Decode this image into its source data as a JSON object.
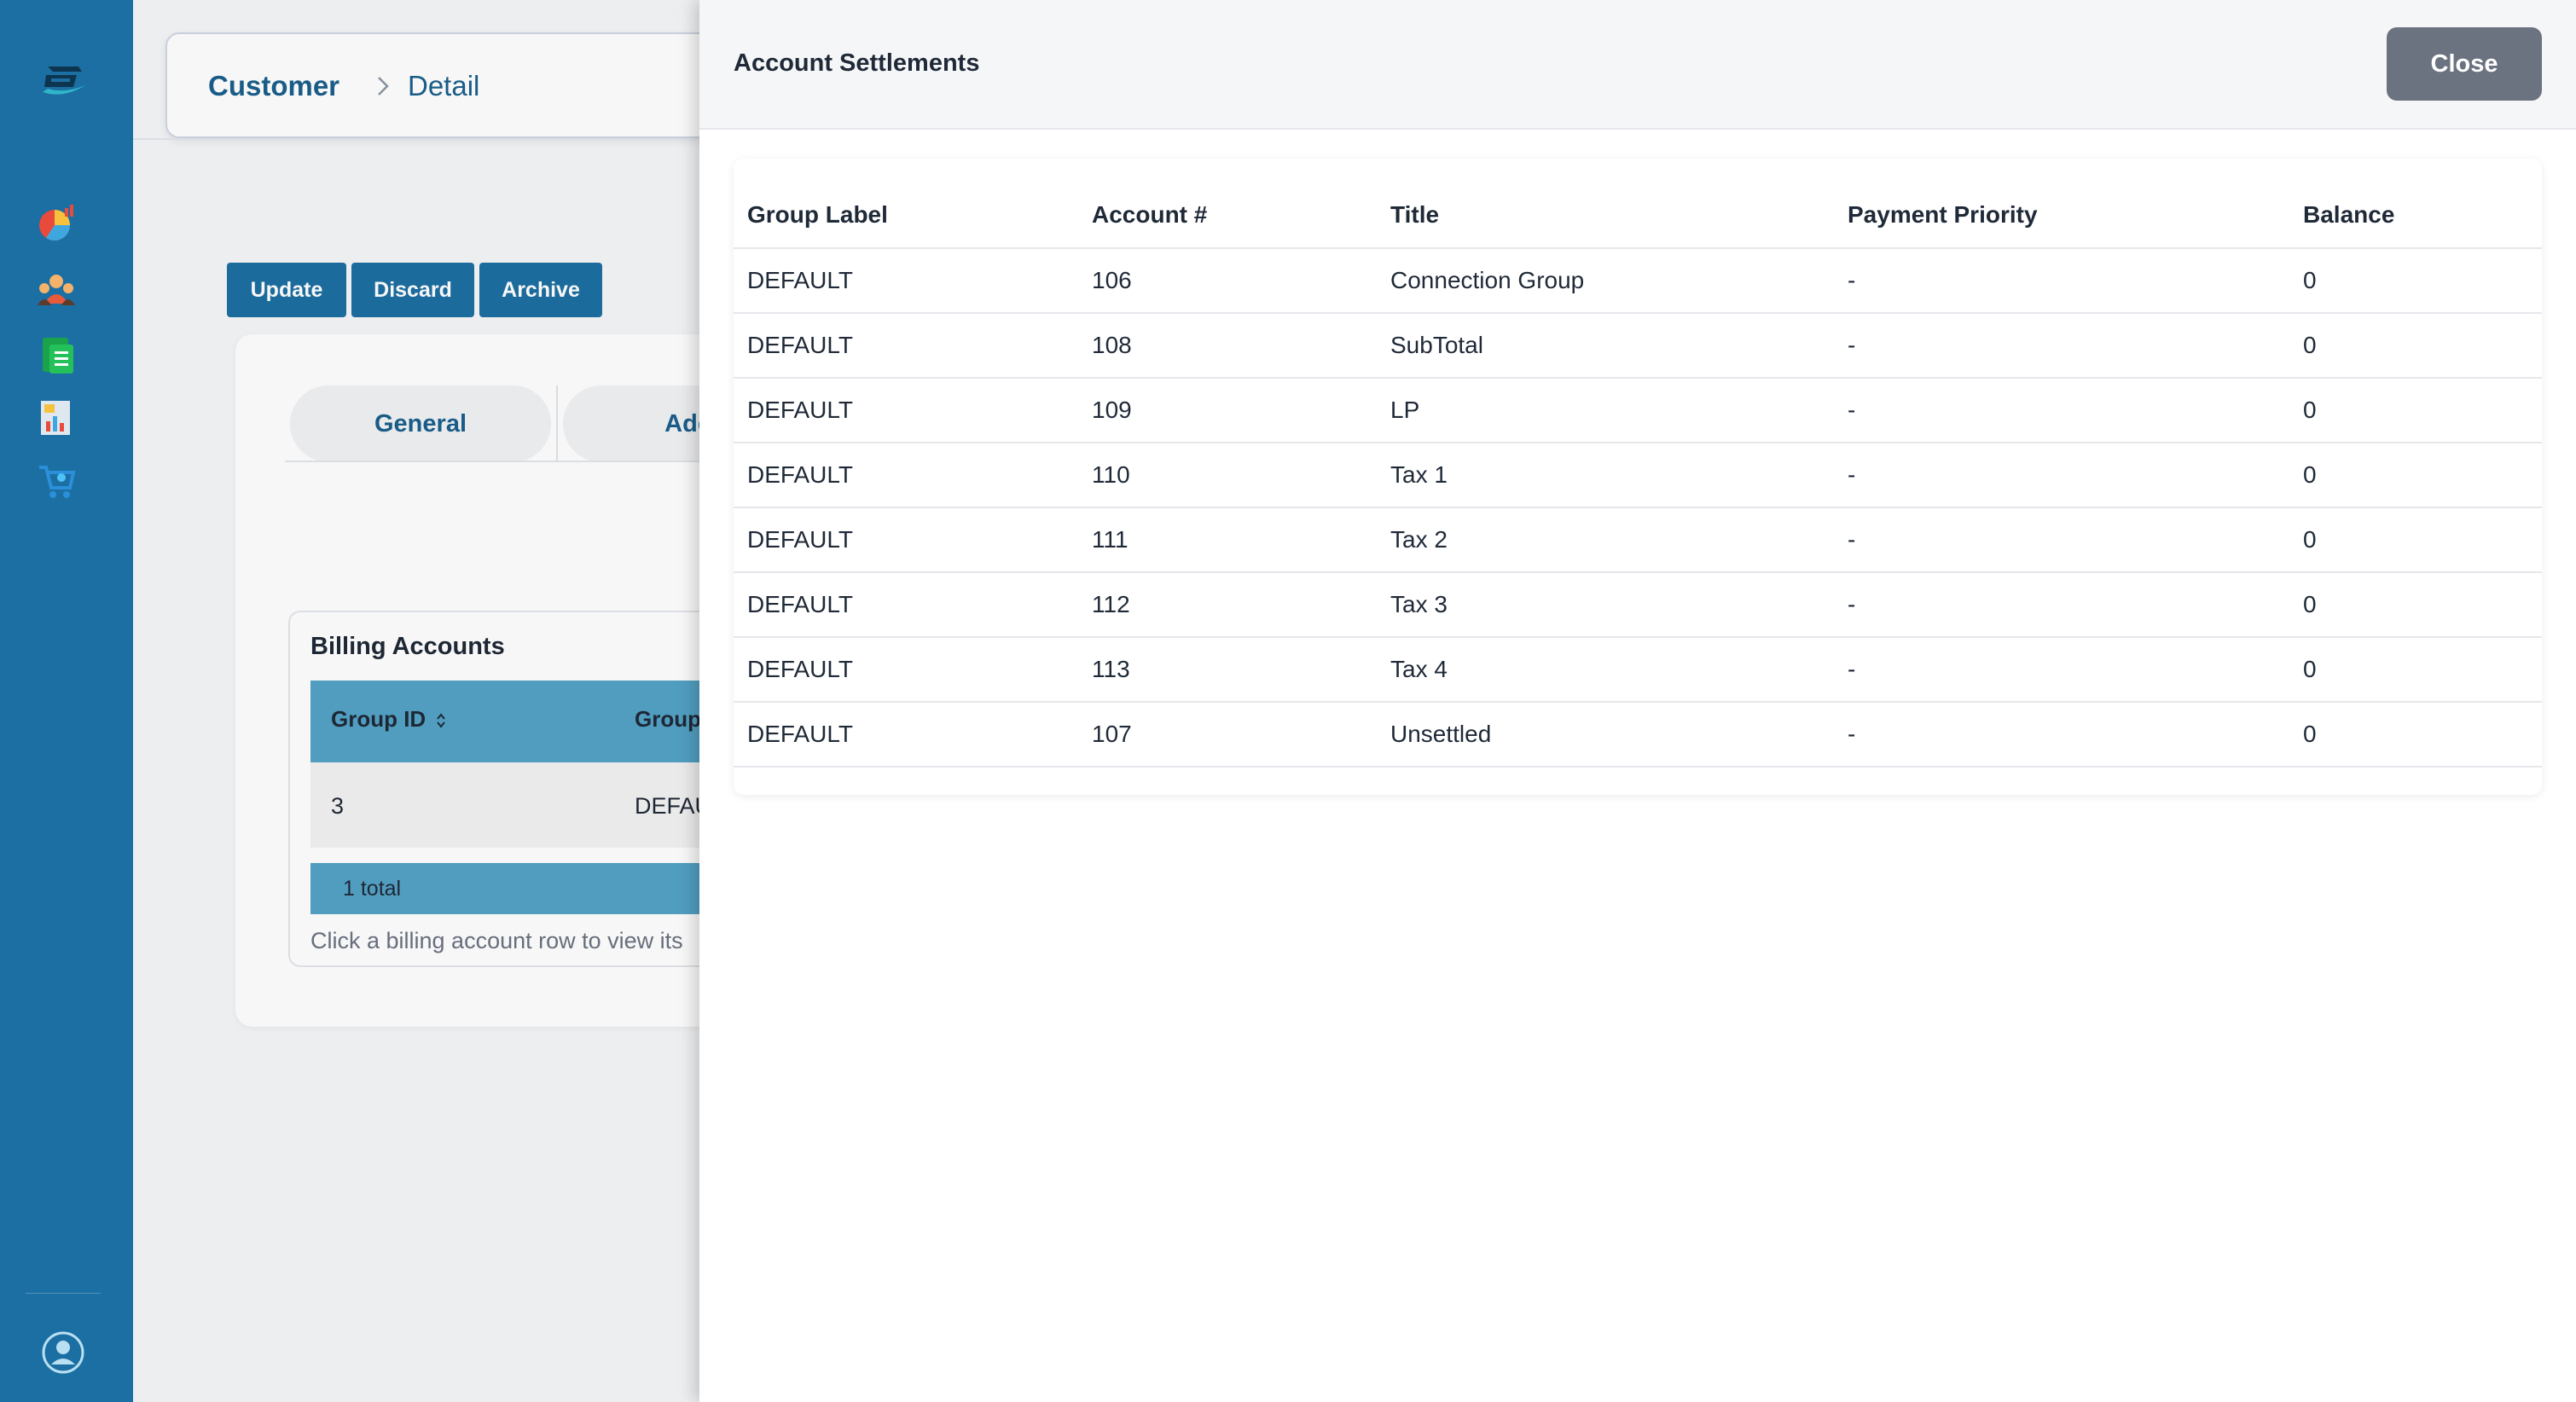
{
  "breadcrumb": {
    "section": "Customer",
    "page": "Detail"
  },
  "actions": {
    "update": "Update",
    "discard": "Discard",
    "archive": "Archive"
  },
  "tabs": [
    {
      "label": "General"
    },
    {
      "label": "Addr"
    }
  ],
  "billing": {
    "title": "Billing Accounts",
    "columns": [
      "Group ID",
      "Group"
    ],
    "rows": [
      {
        "group_id": "3",
        "group": "DEFAU"
      }
    ],
    "total": "1 total",
    "hint": "Click a billing account row to view its"
  },
  "drawer": {
    "title": "Account Settlements",
    "close_label": "Close",
    "columns": [
      "Group Label",
      "Account #",
      "Title",
      "Payment Priority",
      "Balance"
    ],
    "rows": [
      {
        "group_label": "DEFAULT",
        "account": "106",
        "title": "Connection Group",
        "priority": "-",
        "balance": "0"
      },
      {
        "group_label": "DEFAULT",
        "account": "108",
        "title": "SubTotal",
        "priority": "-",
        "balance": "0"
      },
      {
        "group_label": "DEFAULT",
        "account": "109",
        "title": "LP",
        "priority": "-",
        "balance": "0"
      },
      {
        "group_label": "DEFAULT",
        "account": "110",
        "title": "Tax 1",
        "priority": "-",
        "balance": "0"
      },
      {
        "group_label": "DEFAULT",
        "account": "111",
        "title": "Tax 2",
        "priority": "-",
        "balance": "0"
      },
      {
        "group_label": "DEFAULT",
        "account": "112",
        "title": "Tax 3",
        "priority": "-",
        "balance": "0"
      },
      {
        "group_label": "DEFAULT",
        "account": "113",
        "title": "Tax 4",
        "priority": "-",
        "balance": "0"
      },
      {
        "group_label": "DEFAULT",
        "account": "107",
        "title": "Unsettled",
        "priority": "-",
        "balance": "0"
      }
    ]
  },
  "sidebar": {
    "icons": [
      "app-logo-icon",
      "dashboard-chart-icon",
      "customers-icon",
      "documents-icon",
      "reports-icon",
      "cart-icon",
      "user-profile-icon"
    ]
  },
  "colors": {
    "sidebar": "#1c6fa3",
    "table_header": "#54a3c6",
    "link": "#1a5f8c",
    "close_button": "#6b7280"
  }
}
